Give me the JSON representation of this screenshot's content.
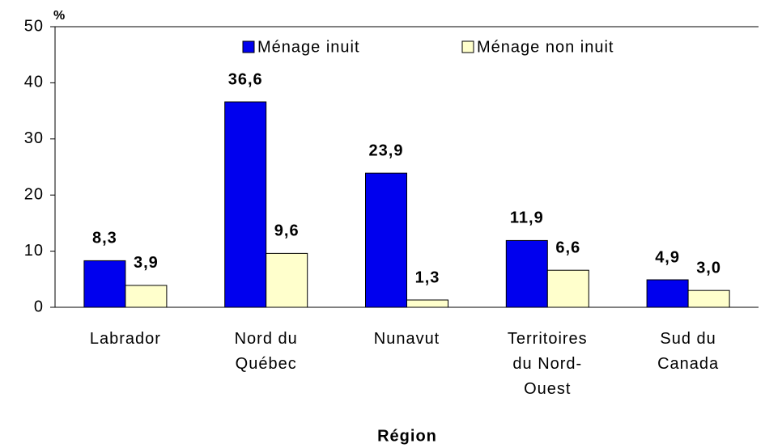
{
  "chart_data": {
    "type": "bar",
    "y_label": "%",
    "x_label": "Région",
    "categories": [
      "Labrador",
      "Nord du Québec",
      "Nunavut",
      "Territoires du Nord-Ouest",
      "Sud du Canada"
    ],
    "series": [
      {
        "name": "Ménage inuit",
        "color": "#0000ee",
        "values": [
          8.3,
          36.6,
          23.9,
          11.9,
          4.9
        ],
        "value_labels": [
          "8,3",
          "36,6",
          "23,9",
          "11,9",
          "4,9"
        ]
      },
      {
        "name": "Ménage non inuit",
        "color": "#ffffcc",
        "values": [
          3.9,
          9.6,
          1.3,
          6.6,
          3.0
        ],
        "value_labels": [
          "3,9",
          "9,6",
          "1,3",
          "6,6",
          "3,0"
        ]
      }
    ],
    "ylim": [
      0,
      50
    ],
    "yticks": [
      0,
      10,
      20,
      30,
      40,
      50
    ],
    "grid": false
  }
}
